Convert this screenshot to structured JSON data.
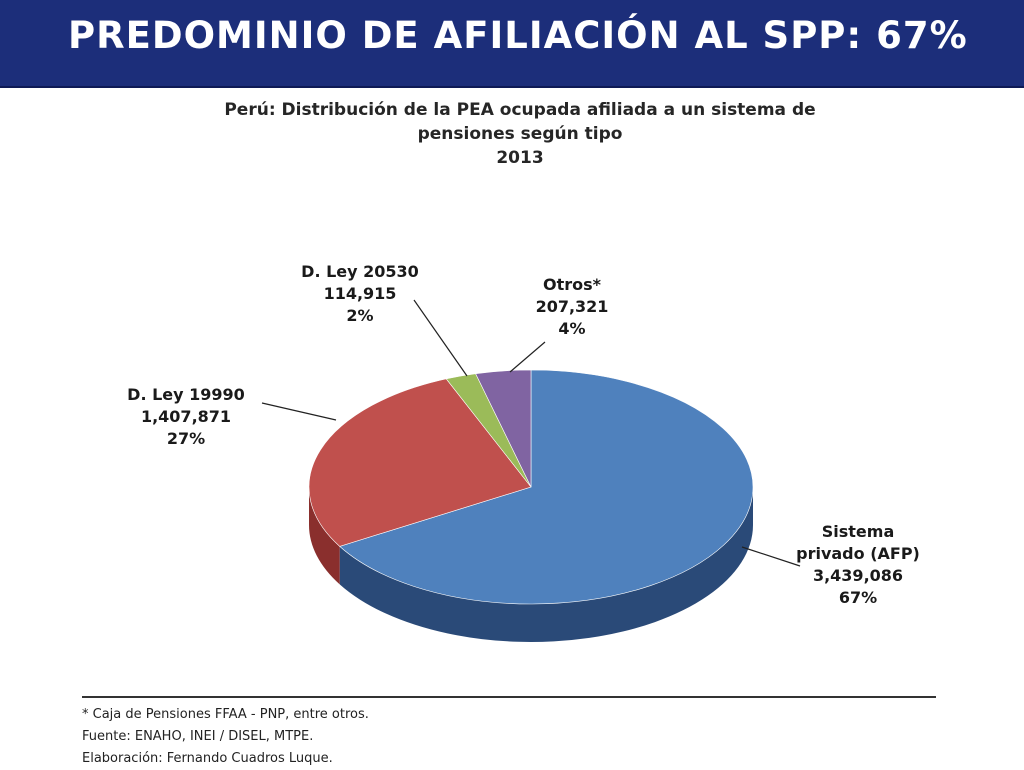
{
  "header": {
    "title": "PREDOMINIO DE AFILIACIÓN AL SPP: 67%"
  },
  "footnotes": [
    "* Caja de Pensiones FFAA - PNP, entre otros.",
    "Fuente: ENAHO, INEI / DISEL, MTPE.",
    "Elaboración: Fernando Cuadros Luque."
  ],
  "chart_data": {
    "type": "pie",
    "title_lines": [
      "Perú: Distribución  de la PEA ocupada afiliada a un sistema de",
      "pensiones según tipo",
      "2013"
    ],
    "legend": "none",
    "slices": [
      {
        "label_lines": [
          "Sistema",
          "privado (AFP)"
        ],
        "value": 3439086,
        "value_text": "3,439,086",
        "percent_text": "67%",
        "color": "#4f81bd",
        "side_color": "#2a4a78"
      },
      {
        "label_lines": [
          "D. Ley 19990"
        ],
        "value": 1407871,
        "value_text": "1,407,871",
        "percent_text": "27%",
        "color": "#c0504d",
        "side_color": "#8a2f2d"
      },
      {
        "label_lines": [
          "D. Ley 20530"
        ],
        "value": 114915,
        "value_text": "114,915",
        "percent_text": "2%",
        "color": "#9bbb59",
        "side_color": "#6a8a35"
      },
      {
        "label_lines": [
          "Otros*"
        ],
        "value": 207321,
        "value_text": "207,321",
        "percent_text": "4%",
        "color": "#8064a2",
        "side_color": "#5a4478"
      }
    ]
  }
}
